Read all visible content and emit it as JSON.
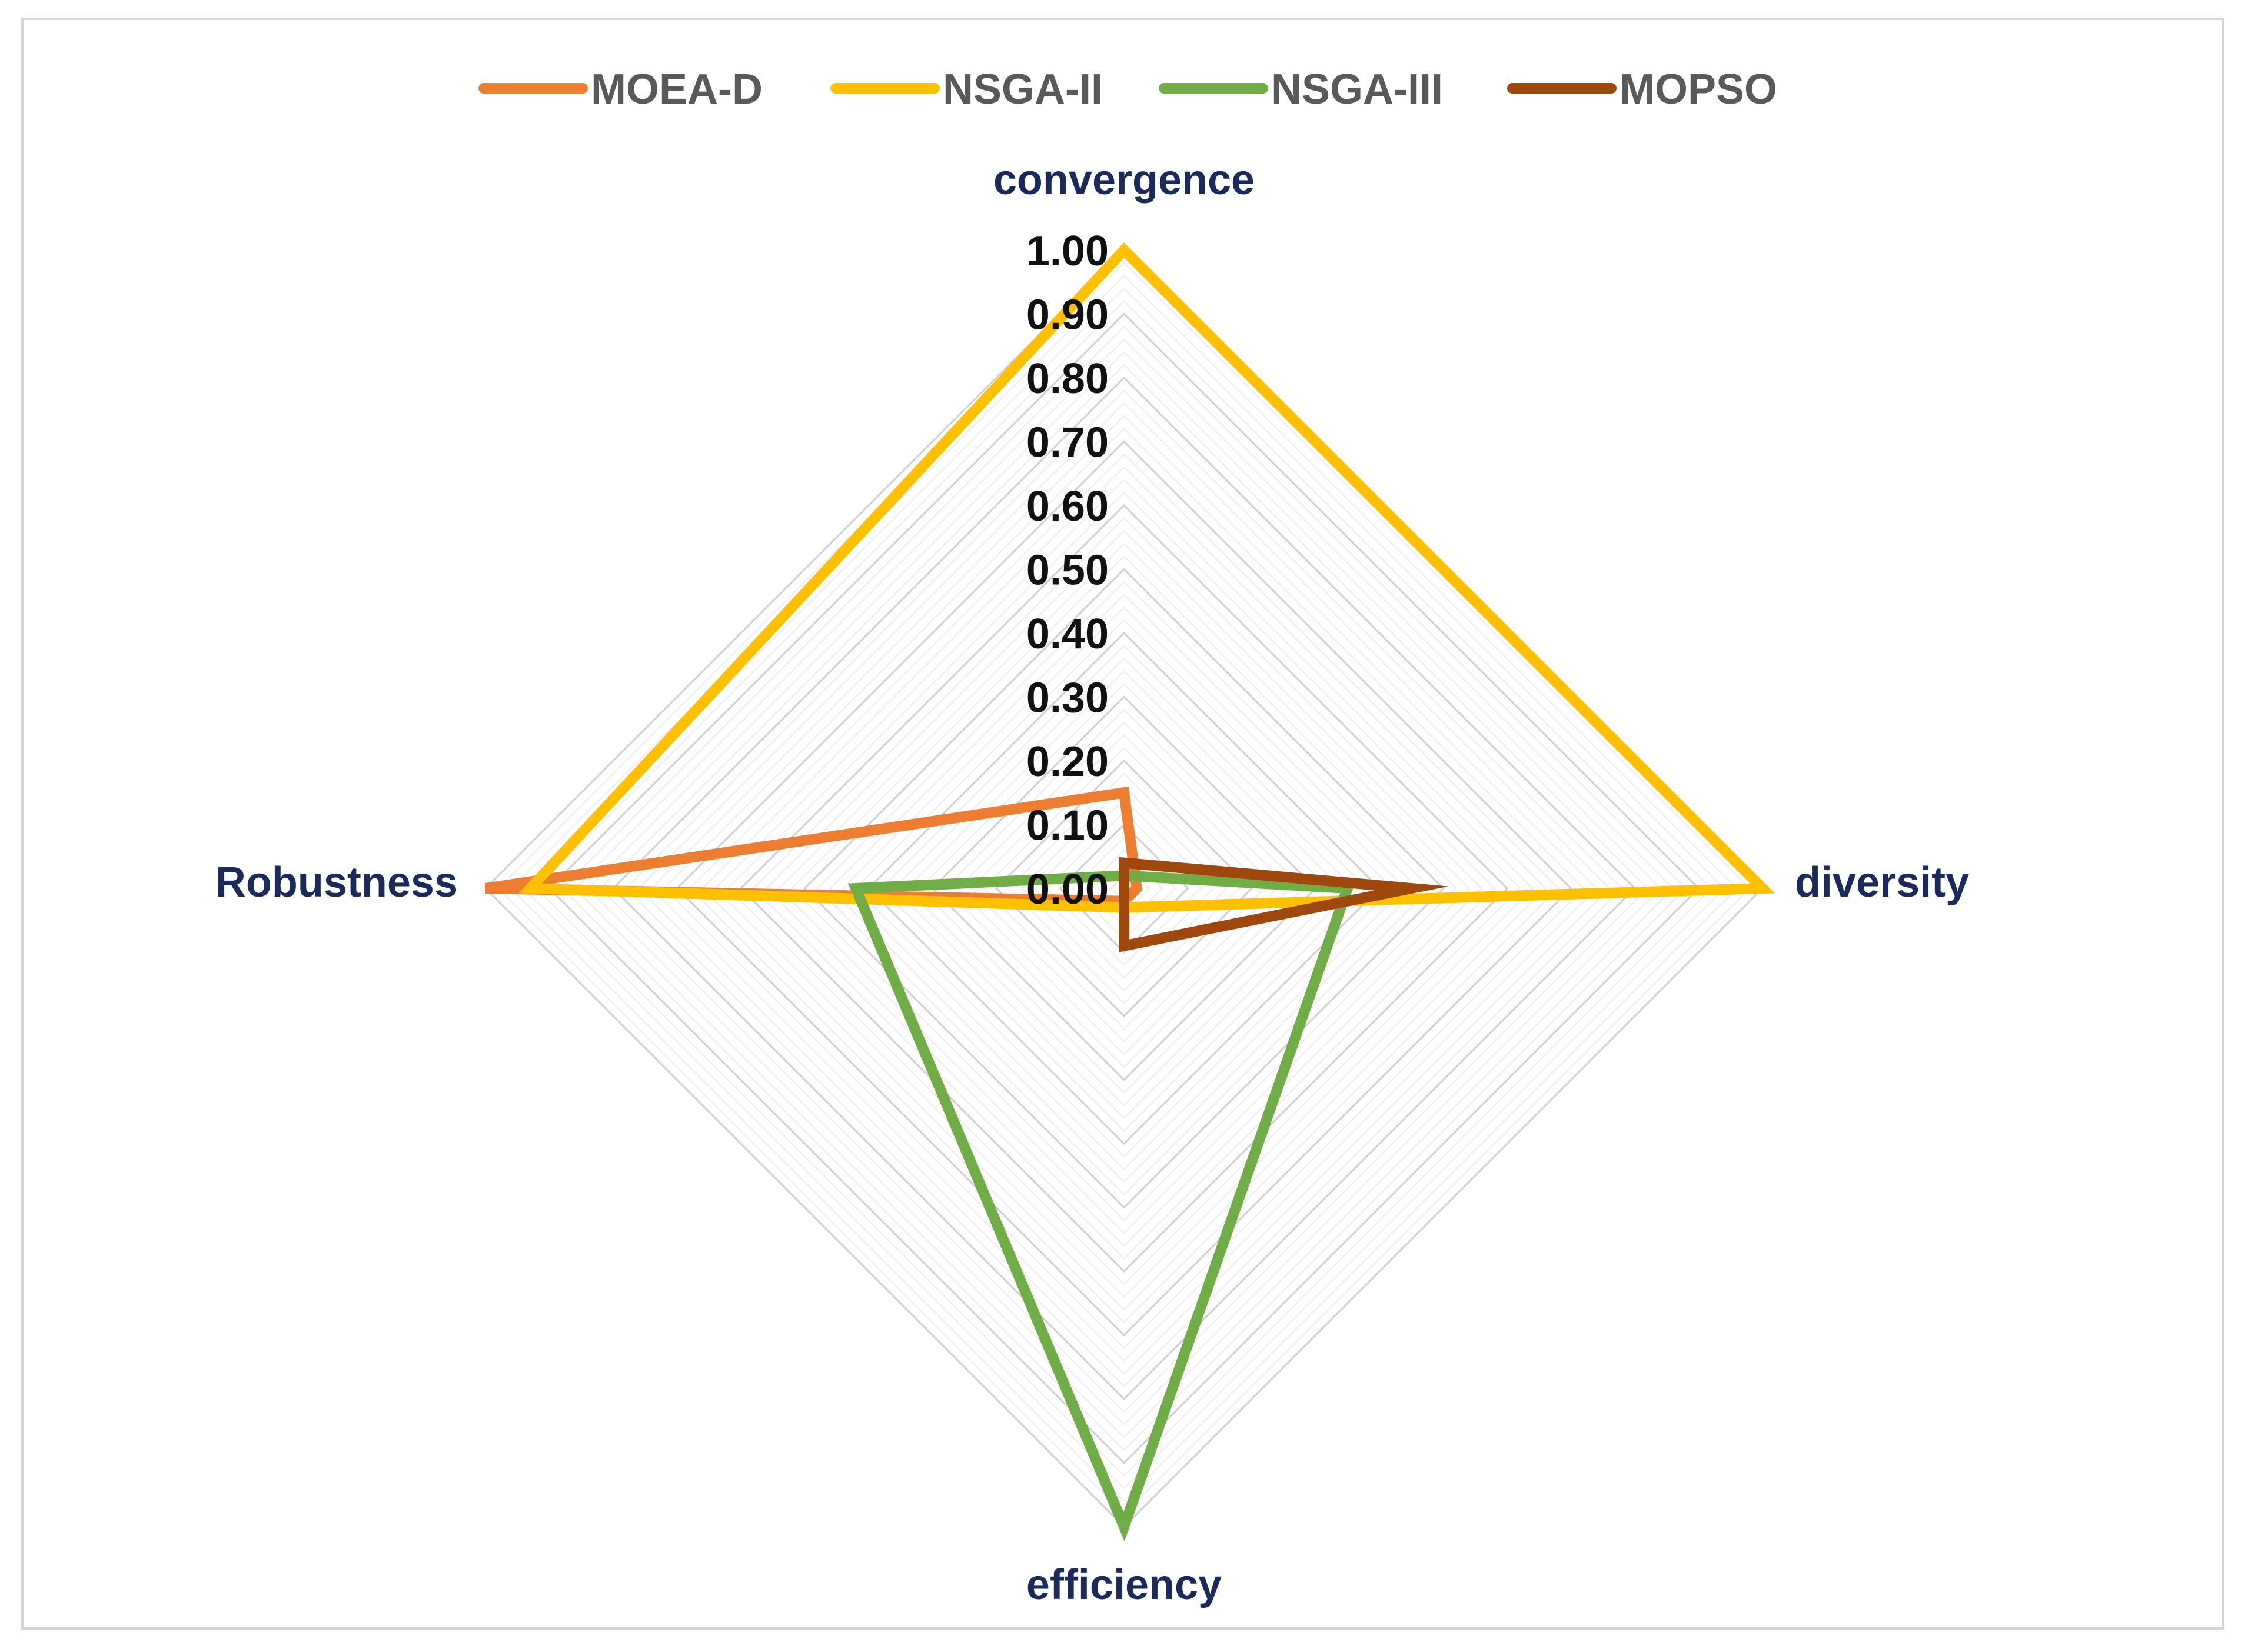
{
  "chart_data": {
    "type": "radar",
    "axes": [
      "convergence",
      "diversity",
      "efficiency",
      "Robustness"
    ],
    "rmin": 0,
    "rmax": 1,
    "tick_labels": [
      "0.00",
      "0.10",
      "0.20",
      "0.30",
      "0.40",
      "0.50",
      "0.60",
      "0.70",
      "0.80",
      "0.90",
      "1.00"
    ],
    "minor_gridlines_per_major": 4,
    "legend_position": "top",
    "series": [
      {
        "name": "MOEA-D",
        "color": "#ED7D31",
        "values": [
          0.15,
          0.02,
          0.02,
          1.0
        ]
      },
      {
        "name": "NSGA-II",
        "color": "#FFC000",
        "values": [
          1.0,
          1.0,
          0.03,
          0.93
        ]
      },
      {
        "name": "NSGA-III",
        "color": "#70AD47",
        "values": [
          0.02,
          0.35,
          1.0,
          0.42
        ]
      },
      {
        "name": "MOPSO",
        "color": "#9E480E",
        "values": [
          0.04,
          0.45,
          0.09,
          0.0
        ]
      }
    ]
  }
}
